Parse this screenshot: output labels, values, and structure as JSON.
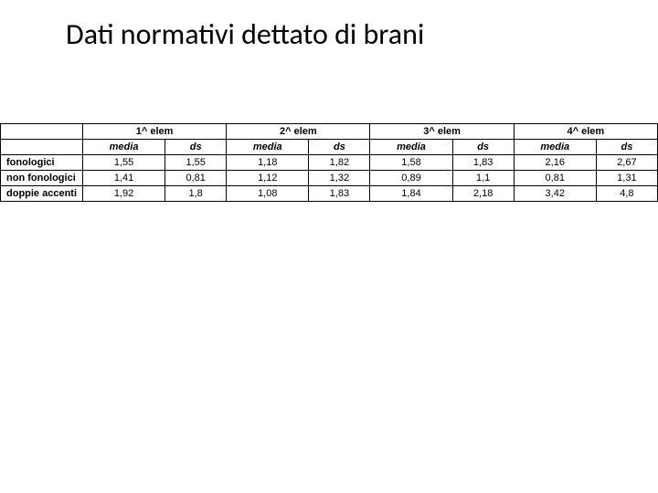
{
  "title": "Dati normativi dettato di brani",
  "table": {
    "groups": [
      "1^ elem",
      "2^ elem",
      "3^ elem",
      "4^ elem"
    ],
    "sub_headers": [
      "media",
      "ds"
    ],
    "row_labels": [
      "fonologici",
      "non fonologici",
      "doppie accenti"
    ],
    "rows": [
      [
        "1,55",
        "1,55",
        "1,18",
        "1,82",
        "1,58",
        "1,83",
        "2,16",
        "2,67"
      ],
      [
        "1,41",
        "0,81",
        "1,12",
        "1,32",
        "0,89",
        "1,1",
        "0,81",
        "1,31"
      ],
      [
        "1,92",
        "1,8",
        "1,08",
        "1,83",
        "1,84",
        "2,18",
        "3,42",
        "4,8"
      ]
    ],
    "border_color": "#000000",
    "background_color": "#ffffff",
    "text_color": "#000000",
    "header_fontsize": 11,
    "cell_fontsize": 11,
    "title_fontsize": 32
  }
}
